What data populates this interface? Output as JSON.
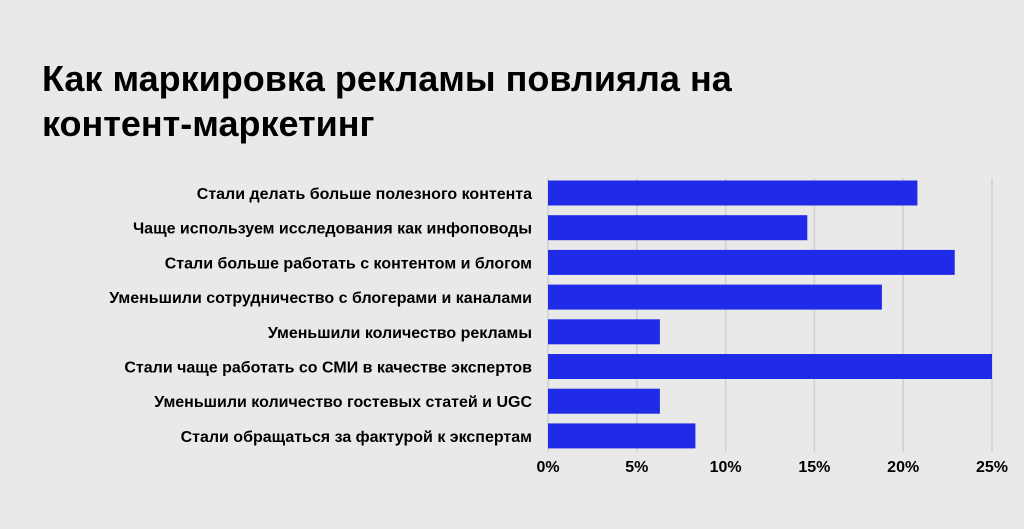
{
  "title_lines": [
    "Как маркировка рекламы повлияла на",
    "контент-маркетинг"
  ],
  "colors": {
    "bar": "#1f2be6",
    "background": "#e9e9e9",
    "grid": "#cfcfcf"
  },
  "chart_data": {
    "type": "bar",
    "orientation": "horizontal",
    "title": "Как маркировка рекламы повлияла на контент-маркетинг",
    "categories": [
      "Стали делать больше полезного контента",
      "Чаще используем исследования как инфоповоды",
      "Стали больше работать с контентом и блогом",
      "Уменьшили сотрудничество с блогерами и каналами",
      "Уменьшили количество рекламы",
      "Стали чаще работать со СМИ в качестве экспертов",
      "Уменьшили количество гостевых статей и UGC",
      "Стали обращаться за фактурой к экспертам"
    ],
    "values": [
      20.8,
      14.6,
      22.9,
      18.8,
      6.3,
      25.0,
      6.3,
      8.3
    ],
    "xlim": [
      0,
      25
    ],
    "xticks": [
      0,
      5,
      10,
      15,
      20,
      25
    ],
    "xtick_labels": [
      "0%",
      "5%",
      "10%",
      "15%",
      "20%",
      "25%"
    ],
    "xlabel": "",
    "ylabel": "",
    "grid": "vertical"
  }
}
